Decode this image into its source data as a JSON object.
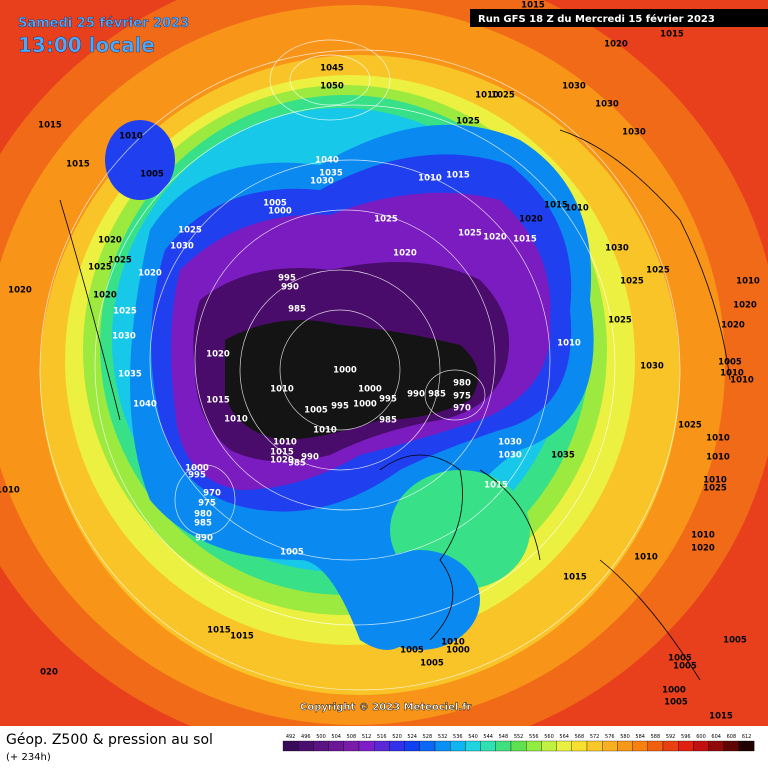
{
  "header": {
    "date": "Samedi 25 février 2023",
    "time": "13:00 locale",
    "run": "Run GFS 18 Z du Mercredi 15 février 2023"
  },
  "footer": {
    "title": "Géop. Z500 & pression au sol",
    "lead": "(+ 234h)",
    "copyright": "Copyright © 2023 Meteociel.fr"
  },
  "isobar_labels": [
    "1045",
    "1050",
    "1015",
    "1010",
    "1005",
    "1015",
    "1040",
    "1035",
    "1030",
    "1005",
    "1000",
    "1025",
    "1030",
    "1020",
    "1025",
    "1025",
    "1020",
    "1020",
    "1020",
    "1025",
    "1030",
    "1035",
    "1040",
    "995",
    "990",
    "985",
    "1020",
    "1010",
    "1015",
    "1010",
    "1000",
    "1000",
    "995",
    "990",
    "985",
    "980",
    "975",
    "970",
    "1005",
    "995",
    "1000",
    "1010",
    "985",
    "1010",
    "1015",
    "1020",
    "985",
    "990",
    "1000",
    "995",
    "970",
    "975",
    "980",
    "985",
    "990",
    "1005",
    "1025",
    "1020",
    "1025",
    "1020",
    "1015",
    "1020",
    "1015",
    "1010",
    "1010",
    "1015",
    "1025",
    "1025",
    "1010",
    "1020",
    "1015",
    "1030",
    "1030",
    "1030",
    "1030",
    "1025",
    "1025",
    "1025",
    "1010",
    "1030",
    "1010",
    "1020",
    "1020",
    "1005",
    "1010",
    "1010",
    "1025",
    "1010",
    "1010",
    "1010",
    "1025",
    "1030",
    "1030",
    "1035",
    "1015",
    "1010",
    "1010",
    "1020",
    "1015",
    "1015",
    "1015",
    "020",
    "1010",
    "1005",
    "1005",
    "1000",
    "1010",
    "1005",
    "1005",
    "1005",
    "1000",
    "1005",
    "1015",
    "1015"
  ],
  "scale": {
    "values": [
      492,
      496,
      500,
      504,
      508,
      512,
      516,
      520,
      524,
      528,
      532,
      536,
      540,
      544,
      548,
      552,
      556,
      560,
      564,
      568,
      572,
      576,
      580,
      584,
      588,
      592,
      596,
      600,
      604,
      608,
      612
    ],
    "colors": [
      "#3a0a5a",
      "#4a0f6e",
      "#5a1482",
      "#6a1896",
      "#7a1caa",
      "#7e1ec8",
      "#5a28d8",
      "#3230e8",
      "#1040f0",
      "#0c68f4",
      "#0890f4",
      "#10b4f0",
      "#20d4e0",
      "#30e0b0",
      "#40e080",
      "#60e050",
      "#90ec40",
      "#c0f040",
      "#e8f040",
      "#f8e030",
      "#f8c828",
      "#f8b020",
      "#f89818",
      "#f88010",
      "#f06010",
      "#e84010",
      "#e02010",
      "#c01010",
      "#900808",
      "#600404",
      "#200000"
    ]
  }
}
